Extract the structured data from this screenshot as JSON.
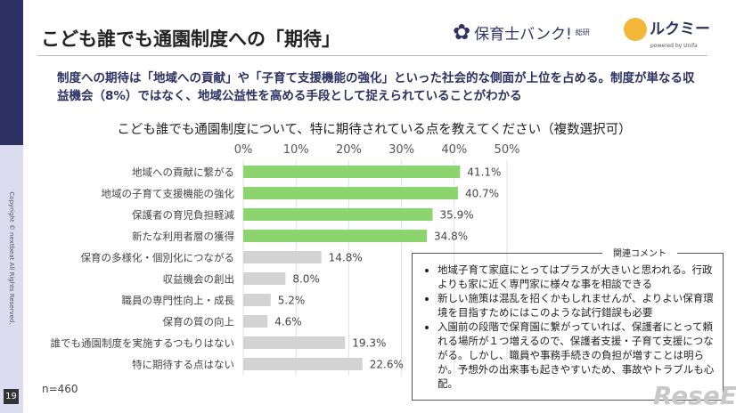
{
  "slide": {
    "title": "こども誰でも通園制度への「期待」",
    "lead": "制度への期待は「地域への貢献」や「子育て支援機能の強化」といった社会的な側面が上位を占める。制度が単なる収益機会（8%）ではなく、地域公益性を高める手段として捉えられていることがわかる",
    "page": "19",
    "copyright": "Copyright © nextbeat All Rights Reserved.",
    "n": "n=460",
    "watermark": "ReseEd"
  },
  "logos": {
    "hoikushi": "保育士バンク!",
    "hoikushi_sub": "総研",
    "lukumi": "ルクミー",
    "lukumi_sub": "powered by Unifa"
  },
  "comments": {
    "label": "関連コメント",
    "items": [
      "地域子育て家庭にとってはプラスが大きいと思われる。行政よりも家に近く専門家に様々な事を相談できる",
      "新しい施策は混乱を招くかもしれませんが、よりよい保育環境を目指すためにはこのような試行錯誤も必要",
      "入園前の段階で保育園に繋がっていれば、保護者にとって頼れる場所が１つ増えるので、保護者支援・子育て支援につながる。しかし、職員や事務手続きの負担が増すことは明らか。予想外の出来事も起きやすいため、事故やトラブルも心配。"
    ]
  },
  "chart_data": {
    "type": "bar",
    "orientation": "horizontal",
    "title": "こども誰でも通園制度について、特に期待されている点を教えてください（複数選択可）",
    "categories": [
      "地域への貢献に繋がる",
      "地域の子育て支援機能の強化",
      "保護者の育児負担軽減",
      "新たな利用者層の獲得",
      "保育の多様化・個別化につながる",
      "収益機会の創出",
      "職員の専門性向上・成長",
      "保育の質の向上",
      "誰でも通園制度を実施するつもりはない",
      "特に期待する点はない"
    ],
    "values": [
      41.1,
      40.7,
      35.9,
      34.8,
      14.8,
      8.0,
      5.2,
      4.6,
      19.3,
      22.6
    ],
    "labels": [
      "41.1%",
      "40.7%",
      "35.9%",
      "34.8%",
      "14.8%",
      "8.0%",
      "5.2%",
      "4.6%",
      "19.3%",
      "22.6%"
    ],
    "xlim": [
      0,
      50
    ],
    "ticks": [
      "0%",
      "10%",
      "20%",
      "30%",
      "40%",
      "50%"
    ],
    "tick_values": [
      0,
      10,
      20,
      30,
      40,
      50
    ],
    "grid": true,
    "colors": {
      "highlight": "#8cd46e",
      "other": "#d3d3d3"
    },
    "highlight_count": 4
  }
}
